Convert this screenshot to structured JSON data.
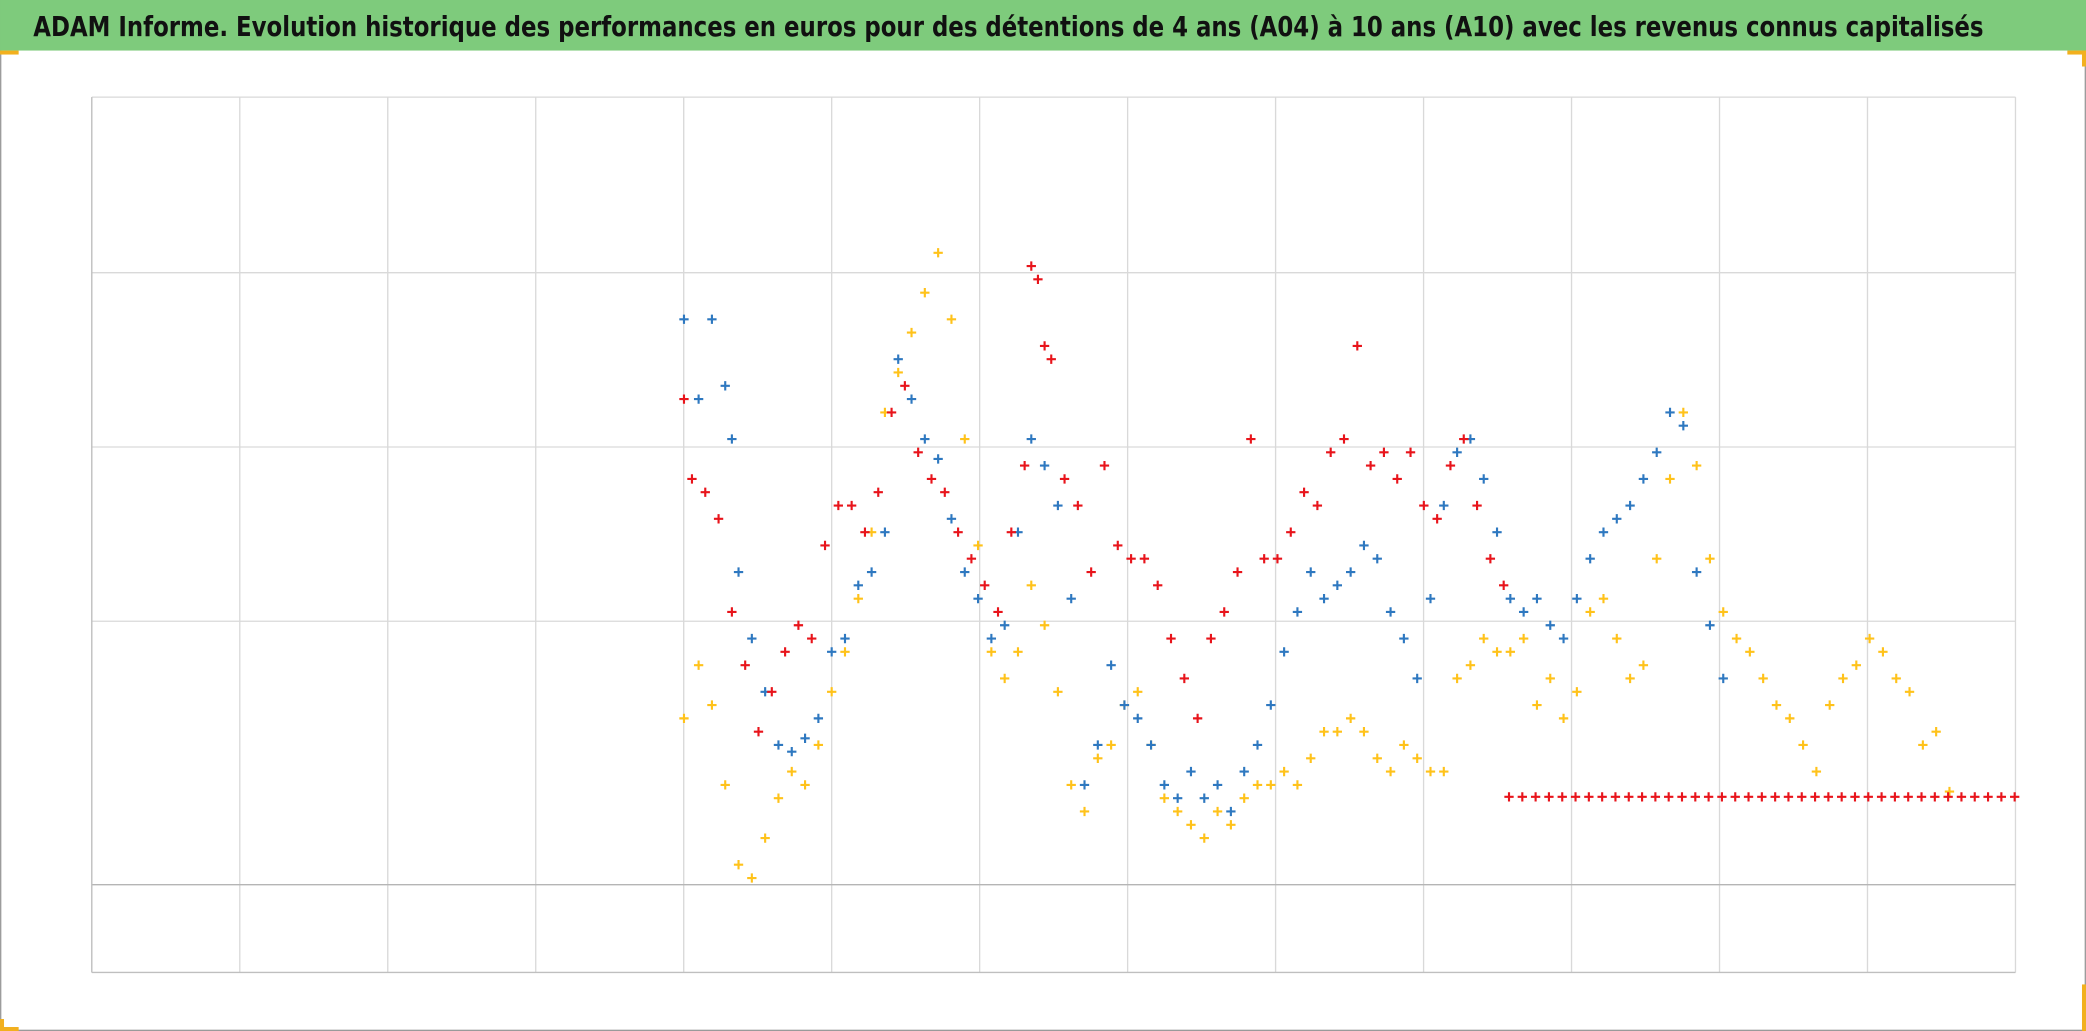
{
  "chart_data": {
    "type": "scatter",
    "title": "ADAM Informe. Evolution historique des performances en euros pour des détentions de 4 ans (A04) à 10 ans (A10) avec les revenus connus capitalisés",
    "xlim": [
      0,
      1445.6
    ],
    "xticks": [
      0,
      111.2,
      222.4,
      333.6,
      444.8,
      556,
      667.2,
      778.4,
      889.6,
      1000.8,
      1112,
      1223.2,
      1334.4,
      1445.6
    ],
    "ylim": [
      -66,
      592
    ],
    "yticks": [
      0,
      198,
      329,
      460,
      592
    ],
    "grid": true,
    "series": [
      {
        "color": "#ffc21a",
        "x": [
          445,
          456,
          466,
          476,
          486,
          496,
          506,
          516,
          526,
          536,
          546,
          556,
          566,
          576,
          586,
          596,
          606,
          616,
          626,
          636,
          646,
          656,
          666,
          676,
          686,
          696,
          706,
          716,
          726,
          736,
          746,
          756,
          766,
          776,
          786,
          796,
          806,
          816,
          826,
          836,
          846,
          856,
          866,
          876,
          886,
          896,
          906,
          916,
          926,
          936,
          946,
          956,
          966,
          976,
          986,
          996,
          1006,
          1016,
          1026,
          1036,
          1046,
          1056,
          1066,
          1076,
          1086,
          1096,
          1106,
          1116,
          1126,
          1136,
          1146,
          1156,
          1166,
          1176,
          1186,
          1196,
          1206,
          1216,
          1226,
          1236,
          1246,
          1256,
          1266,
          1276,
          1286,
          1296,
          1306,
          1316,
          1326,
          1336,
          1346,
          1356,
          1366,
          1376,
          1386,
          1396
        ],
        "values": [
          125,
          165,
          135,
          75,
          15,
          5,
          35,
          65,
          85,
          75,
          105,
          145,
          175,
          215,
          265,
          355,
          385,
          415,
          445,
          475,
          425,
          335,
          255,
          175,
          155,
          175,
          225,
          195,
          145,
          75,
          55,
          95,
          105,
          135,
          145,
          105,
          65,
          55,
          45,
          35,
          55,
          45,
          65,
          75,
          75,
          85,
          75,
          95,
          115,
          115,
          125,
          115,
          95,
          85,
          105,
          95,
          85,
          85,
          155,
          165,
          185,
          175,
          175,
          185,
          135,
          155,
          125,
          145,
          205,
          215,
          185,
          155,
          165,
          245,
          305,
          355,
          315,
          245,
          205,
          185,
          175,
          155,
          135,
          125,
          105,
          85,
          135,
          155,
          165,
          185,
          175,
          155,
          145,
          105,
          115,
          70
        ]
      },
      {
        "color": "#2e78c0",
        "x": [
          445,
          456,
          466,
          476,
          481,
          486,
          496,
          506,
          516,
          526,
          536,
          546,
          556,
          566,
          576,
          586,
          596,
          606,
          616,
          626,
          636,
          646,
          656,
          666,
          676,
          686,
          696,
          706,
          716,
          726,
          736,
          746,
          756,
          766,
          776,
          786,
          796,
          806,
          816,
          826,
          836,
          846,
          856,
          866,
          876,
          886,
          896,
          906,
          916,
          926,
          936,
          946,
          956,
          966,
          976,
          986,
          996,
          1006,
          1016,
          1026,
          1036,
          1046,
          1056,
          1066,
          1076,
          1086,
          1096,
          1106,
          1116,
          1126,
          1136,
          1146,
          1156,
          1166,
          1176,
          1186,
          1196,
          1206,
          1216,
          1226
        ],
        "values": [
          425,
          365,
          425,
          375,
          335,
          235,
          185,
          145,
          105,
          100,
          110,
          125,
          175,
          185,
          225,
          235,
          265,
          395,
          365,
          335,
          320,
          275,
          235,
          215,
          185,
          195,
          265,
          335,
          315,
          285,
          215,
          75,
          105,
          165,
          135,
          125,
          105,
          75,
          65,
          85,
          65,
          75,
          55,
          85,
          105,
          135,
          175,
          205,
          235,
          215,
          225,
          235,
          255,
          245,
          205,
          185,
          155,
          215,
          285,
          325,
          335,
          305,
          265,
          215,
          205,
          215,
          195,
          185,
          215,
          245,
          265,
          275,
          285,
          305,
          325,
          355,
          345,
          235,
          195,
          155
        ]
      },
      {
        "color": "#e8141b",
        "x": [
          445,
          451,
          461,
          471,
          481,
          491,
          501,
          511,
          521,
          531,
          541,
          551,
          561,
          571,
          581,
          591,
          601,
          611,
          621,
          631,
          641,
          651,
          661,
          671,
          681,
          691,
          701,
          706,
          711,
          716,
          721,
          731,
          741,
          751,
          761,
          771,
          781,
          791,
          801,
          811,
          821,
          831,
          841,
          851,
          861,
          871,
          881,
          891,
          901,
          911,
          921,
          931,
          941,
          951,
          961,
          971,
          981,
          991,
          1001,
          1011,
          1021,
          1031,
          1041,
          1051,
          1061,
          1065,
          1075,
          1085,
          1095,
          1105,
          1115,
          1125,
          1135,
          1145,
          1155,
          1165,
          1175,
          1185,
          1195,
          1205,
          1215,
          1225,
          1235,
          1245,
          1255,
          1265,
          1275,
          1285,
          1295,
          1305,
          1315,
          1325,
          1335,
          1345,
          1355,
          1365,
          1375,
          1385,
          1395,
          1405,
          1415,
          1425,
          1435,
          1445
        ],
        "values": [
          365,
          305,
          295,
          275,
          205,
          165,
          115,
          145,
          175,
          195,
          185,
          255,
          285,
          285,
          265,
          295,
          355,
          375,
          325,
          305,
          295,
          265,
          245,
          225,
          205,
          265,
          315,
          465,
          455,
          405,
          395,
          305,
          285,
          235,
          315,
          255,
          245,
          245,
          225,
          185,
          155,
          125,
          185,
          205,
          235,
          335,
          245,
          245,
          265,
          295,
          285,
          325,
          335,
          405,
          315,
          325,
          305,
          325,
          285,
          275,
          315,
          335,
          285,
          245,
          225,
          66,
          66,
          66,
          66,
          66,
          66,
          66,
          66,
          66,
          66,
          66,
          66,
          66,
          66,
          66,
          66,
          66,
          66,
          66,
          66,
          66,
          66,
          66,
          66,
          66,
          66,
          66,
          66,
          66,
          66,
          66,
          66,
          66,
          66,
          66,
          66,
          66,
          66,
          66
        ]
      }
    ]
  }
}
